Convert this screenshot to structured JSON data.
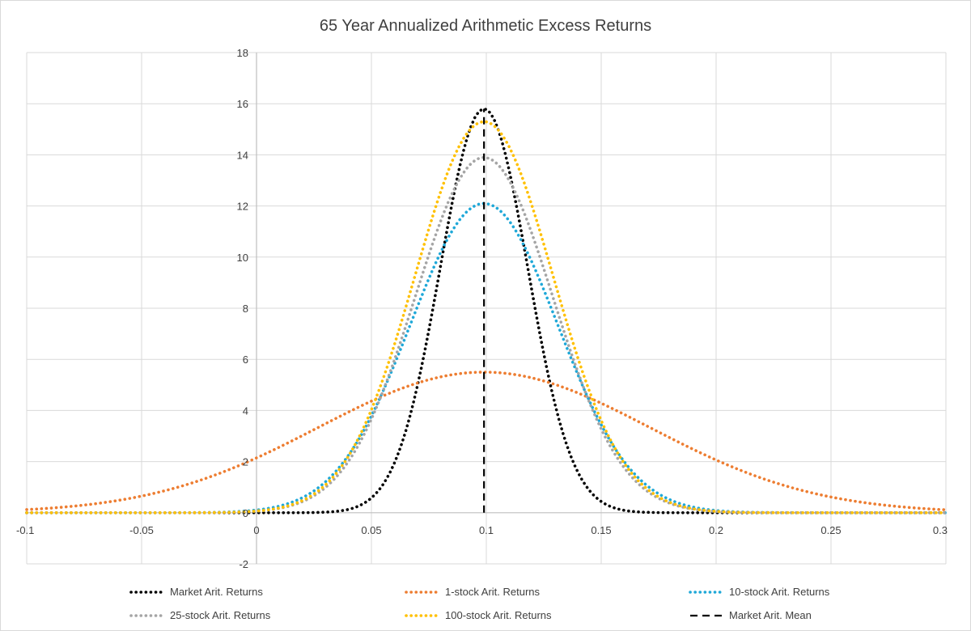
{
  "chart_data": {
    "type": "line",
    "title": "65 Year Annualized Arithmetic Excess Returns",
    "xlabel": "",
    "ylabel": "",
    "xlim": [
      -0.1,
      0.3
    ],
    "ylim": [
      -2,
      18
    ],
    "x_ticks": [
      "-0.1",
      "-0.05",
      "0",
      "0.05",
      "0.1",
      "0.15",
      "0.2",
      "0.25",
      "0.3"
    ],
    "y_ticks": [
      "-2",
      "0",
      "2",
      "4",
      "6",
      "8",
      "10",
      "12",
      "14",
      "16",
      "18"
    ],
    "grid": true,
    "legend_position": "bottom",
    "series": [
      {
        "name": "Market Arit. Returns",
        "color": "#000000",
        "style": "dotted",
        "kind": "normal",
        "mean": 0.099,
        "peak": 15.8,
        "x": [
          -0.1,
          -0.05,
          0,
          0.02,
          0.04,
          0.05,
          0.06,
          0.07,
          0.08,
          0.09,
          0.099,
          0.11,
          0.12,
          0.13,
          0.14,
          0.15,
          0.16,
          0.18,
          0.2,
          0.25,
          0.3
        ],
        "y": [
          0,
          0,
          0.02,
          0.2,
          1.0,
          2.1,
          3.8,
          6.2,
          9.6,
          13.5,
          15.8,
          14.8,
          11.5,
          8.3,
          5.2,
          2.7,
          1.2,
          0.15,
          0.01,
          0,
          0
        ]
      },
      {
        "name": "1-stock Arit. Returns",
        "color": "#ed7d31",
        "style": "dotted",
        "kind": "normal",
        "mean": 0.099,
        "peak": 5.5,
        "x": [
          -0.1,
          -0.05,
          0,
          0.05,
          0.1,
          0.15,
          0.2,
          0.25,
          0.3
        ],
        "y": [
          0.1,
          0.7,
          2.1,
          4.4,
          5.5,
          4.3,
          2.1,
          0.6,
          0.1
        ]
      },
      {
        "name": "10-stock Arit. Returns",
        "color": "#1fa8d8",
        "style": "dotted",
        "kind": "normal",
        "mean": 0.099,
        "peak": 12.1,
        "x": [
          -0.1,
          -0.05,
          0,
          0.03,
          0.05,
          0.07,
          0.1,
          0.13,
          0.15,
          0.17,
          0.2,
          0.25,
          0.3
        ],
        "y": [
          0,
          0,
          0.1,
          1.2,
          3.8,
          8.0,
          12.1,
          8.0,
          3.9,
          1.2,
          0.1,
          0,
          0
        ]
      },
      {
        "name": "25-stock Arit. Returns",
        "color": "#a5a5a5",
        "style": "dotted",
        "kind": "normal",
        "mean": 0.099,
        "peak": 13.9,
        "x": [
          -0.1,
          -0.05,
          0,
          0.03,
          0.05,
          0.07,
          0.1,
          0.13,
          0.15,
          0.17,
          0.2,
          0.25,
          0.3
        ],
        "y": [
          0,
          0,
          0.03,
          0.7,
          3.0,
          7.9,
          13.9,
          7.9,
          3.0,
          0.7,
          0.03,
          0,
          0
        ]
      },
      {
        "name": "100-stock Arit. Returns",
        "color": "#ffc000",
        "style": "dotted",
        "kind": "normal",
        "mean": 0.099,
        "peak": 15.3,
        "x": [
          -0.1,
          -0.05,
          0,
          0.03,
          0.05,
          0.07,
          0.1,
          0.13,
          0.15,
          0.17,
          0.2,
          0.25,
          0.3
        ],
        "y": [
          0,
          0,
          0.02,
          0.4,
          2.5,
          7.9,
          15.3,
          7.9,
          2.5,
          0.4,
          0.02,
          0,
          0
        ]
      },
      {
        "name": "Market Arit. Mean",
        "color": "#000000",
        "style": "dashed",
        "kind": "vline",
        "x": [
          0.099,
          0.099
        ],
        "y": [
          0,
          15.8
        ]
      }
    ]
  }
}
